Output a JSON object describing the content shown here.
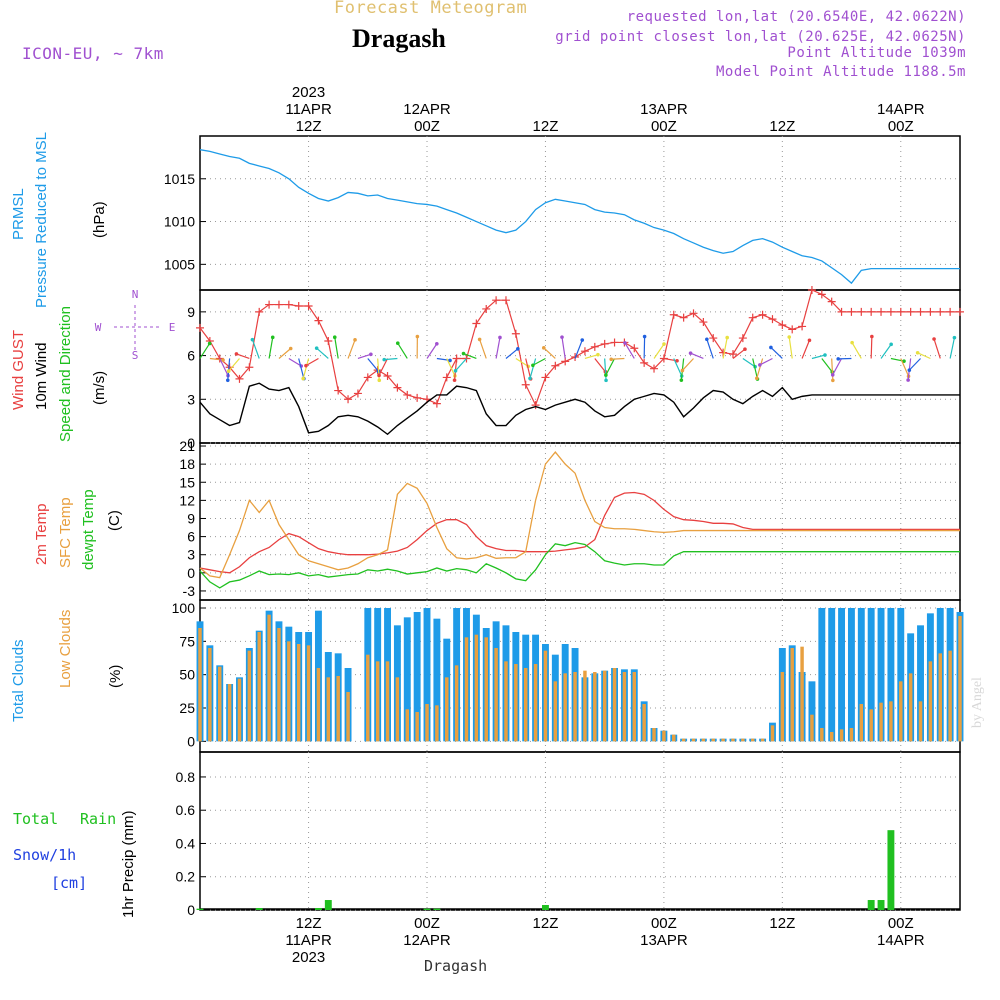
{
  "header": {
    "super_title": "Forecast Meteogram",
    "title": "Dragash",
    "model": "ICON-EU, ~ 7km",
    "requested": "requested lon,lat (20.6540E, 42.0622N)",
    "grid_point": "grid point closest lon,lat (20.625E, 42.0625N)",
    "point_altitude": "Point Altitude 1039m",
    "model_altitude": "Model Point Altitude 1188.5m",
    "watermark": "by Angel",
    "footer": "Dragash"
  },
  "time_axis": {
    "top_labels": [
      {
        "lines": [
          "2023",
          "11APR",
          "12Z"
        ],
        "hour": 12
      },
      {
        "lines": [
          "12APR",
          "00Z"
        ],
        "hour": 24
      },
      {
        "lines": [
          "12Z"
        ],
        "hour": 36
      },
      {
        "lines": [
          "13APR",
          "00Z"
        ],
        "hour": 48
      },
      {
        "lines": [
          "12Z"
        ],
        "hour": 60
      },
      {
        "lines": [
          "14APR",
          "00Z"
        ],
        "hour": 72
      }
    ],
    "bottom_labels": [
      {
        "lines": [
          "12Z",
          "11APR",
          "2023"
        ],
        "hour": 12
      },
      {
        "lines": [
          "00Z",
          "12APR"
        ],
        "hour": 24
      },
      {
        "lines": [
          "12Z"
        ],
        "hour": 36
      },
      {
        "lines": [
          "00Z",
          "13APR"
        ],
        "hour": 48
      },
      {
        "lines": [
          "12Z"
        ],
        "hour": 60
      },
      {
        "lines": [
          "00Z",
          "14APR"
        ],
        "hour": 72
      }
    ],
    "start_hour": 1,
    "end_hour": 78
  },
  "colors": {
    "pressure": "#1e9be8",
    "gust": "#e84040",
    "wind": "#000000",
    "t2m": "#e84040",
    "sfc": "#e8a040",
    "dewpt": "#20c020",
    "total_clouds": "#1e9be8",
    "low_clouds": "#e8a040",
    "rain": "#20c020",
    "snow": "#2040e0",
    "purple": "#a050d0"
  },
  "chart_data": [
    {
      "type": "line",
      "panel": "pressure",
      "ylabel_lines": [
        "PRMSL",
        "Pressure Reduced to MSL"
      ],
      "unit": "(hPa)",
      "yticks": [
        1005,
        1010,
        1015
      ],
      "ylim": [
        1002,
        1020
      ],
      "x": [
        1,
        2,
        3,
        4,
        5,
        6,
        7,
        8,
        9,
        10,
        11,
        12,
        13,
        14,
        15,
        16,
        17,
        18,
        19,
        20,
        21,
        22,
        23,
        24,
        25,
        26,
        27,
        28,
        29,
        30,
        31,
        32,
        33,
        34,
        35,
        36,
        37,
        38,
        39,
        40,
        41,
        42,
        43,
        44,
        45,
        46,
        47,
        48,
        49,
        50,
        51,
        52,
        53,
        54,
        55,
        56,
        57,
        58,
        59,
        60,
        61,
        62,
        63,
        64,
        65,
        66,
        67,
        68,
        69,
        70,
        71,
        72,
        73,
        74,
        75,
        76,
        77,
        78
      ],
      "series": [
        {
          "values": [
            1018.4,
            1018.2,
            1017.9,
            1017.6,
            1017.4,
            1016.8,
            1016.5,
            1016.2,
            1015.7,
            1015.0,
            1014.0,
            1013.3,
            1012.7,
            1012.4,
            1012.8,
            1013.4,
            1013.3,
            1013.0,
            1013.1,
            1012.7,
            1012.5,
            1012.3,
            1012.1,
            1012.0,
            1011.8,
            1011.4,
            1011.0,
            1010.5,
            1010.0,
            1009.5,
            1009.0,
            1008.7,
            1009.0,
            1010.0,
            1011.4,
            1012.2,
            1012.6,
            1012.4,
            1012.2,
            1012.0,
            1011.4,
            1011.1,
            1011.0,
            1010.8,
            1010.2,
            1009.8,
            1009.3,
            1009.0,
            1008.6,
            1008.0,
            1007.5,
            1007.0,
            1006.6,
            1006.3,
            1006.5,
            1007.2,
            1007.8,
            1008.0,
            1007.6,
            1007.0,
            1006.5,
            1006.0,
            1005.8,
            1005.4,
            1004.6,
            1003.8,
            1002.8,
            1004.3,
            1004.5,
            1004.5,
            1004.5,
            1004.5,
            1004.5,
            1004.5,
            1004.5,
            1004.5,
            1004.5,
            1004.5
          ]
        }
      ]
    },
    {
      "type": "line",
      "panel": "wind",
      "ylabel_lines": [
        "Wind GUST",
        "10m Wind",
        "Speed and Direction"
      ],
      "unit": "(m/s)",
      "compass": {
        "n": "N",
        "s": "S",
        "w": "W",
        "e": "E"
      },
      "yticks": [
        0,
        3,
        6,
        9
      ],
      "ylim": [
        0,
        10.5
      ],
      "x": [
        1,
        2,
        3,
        4,
        5,
        6,
        7,
        8,
        9,
        10,
        11,
        12,
        13,
        14,
        15,
        16,
        17,
        18,
        19,
        20,
        21,
        22,
        23,
        24,
        25,
        26,
        27,
        28,
        29,
        30,
        31,
        32,
        33,
        34,
        35,
        36,
        37,
        38,
        39,
        40,
        41,
        42,
        43,
        44,
        45,
        46,
        47,
        48,
        49,
        50,
        51,
        52,
        53,
        54,
        55,
        56,
        57,
        58,
        59,
        60,
        61,
        62,
        63,
        64,
        65,
        66,
        67,
        68,
        69,
        70,
        71,
        72,
        73,
        74,
        75,
        76,
        77,
        78
      ],
      "series": [
        {
          "name": "Wind GUST",
          "values": [
            7.9,
            7.0,
            5.8,
            5.2,
            4.4,
            5.2,
            9.0,
            9.5,
            9.5,
            9.5,
            9.4,
            9.4,
            8.4,
            7.0,
            3.6,
            3.0,
            3.4,
            4.5,
            5.0,
            4.6,
            3.8,
            3.3,
            3.1,
            3.0,
            2.7,
            4.5,
            5.8,
            5.8,
            8.2,
            9.2,
            9.8,
            9.8,
            7.5,
            4.0,
            2.6,
            4.5,
            5.3,
            5.6,
            5.9,
            6.3,
            6.6,
            6.8,
            6.9,
            6.9,
            6.5,
            5.5,
            5.1,
            5.8,
            8.8,
            8.6,
            8.9,
            8.3,
            7.2,
            6.2,
            6.1,
            7.2,
            8.6,
            8.8,
            8.5,
            8.1,
            7.8,
            8.0,
            10.5,
            10.2,
            9.7,
            9.0,
            9.0,
            9.0,
            9.0,
            9.0,
            9.0,
            9.0,
            9.0,
            9.0,
            9.0,
            9.0,
            9.0,
            9.0
          ]
        },
        {
          "name": "10m Wind",
          "values": [
            2.8,
            2.0,
            1.6,
            1.2,
            1.4,
            3.9,
            4.1,
            3.7,
            3.6,
            3.8,
            2.5,
            0.7,
            0.8,
            1.2,
            1.8,
            1.9,
            1.8,
            1.5,
            1.1,
            0.6,
            1.2,
            1.7,
            2.2,
            2.8,
            3.3,
            3.3,
            3.9,
            3.8,
            3.6,
            2.0,
            1.2,
            1.2,
            1.9,
            2.3,
            2.5,
            2.3,
            2.6,
            2.8,
            3.0,
            2.8,
            2.2,
            1.8,
            1.9,
            2.5,
            3.0,
            3.2,
            3.4,
            3.3,
            2.8,
            1.8,
            2.4,
            3.1,
            3.6,
            3.5,
            3.0,
            2.7,
            3.2,
            3.6,
            3.2,
            3.8,
            3.0,
            3.2,
            3.3,
            3.3,
            3.3,
            3.3,
            3.3,
            3.3,
            3.3,
            3.3,
            3.3,
            3.3,
            3.3,
            3.3,
            3.3,
            3.3,
            3.3,
            3.3
          ]
        }
      ]
    },
    {
      "type": "line",
      "panel": "temperature",
      "ylabel_lines": [
        "2m Temp",
        "SFC Temp",
        "dewpt Temp"
      ],
      "unit": "(C)",
      "yticks": [
        -3,
        0,
        3,
        6,
        9,
        12,
        15,
        18,
        21
      ],
      "ylim": [
        -4.5,
        21.5
      ],
      "x": [
        1,
        2,
        3,
        4,
        5,
        6,
        7,
        8,
        9,
        10,
        11,
        12,
        13,
        14,
        15,
        16,
        17,
        18,
        19,
        20,
        21,
        22,
        23,
        24,
        25,
        26,
        27,
        28,
        29,
        30,
        31,
        32,
        33,
        34,
        35,
        36,
        37,
        38,
        39,
        40,
        41,
        42,
        43,
        44,
        45,
        46,
        47,
        48,
        49,
        50,
        51,
        52,
        53,
        54,
        55,
        56,
        57,
        58,
        59,
        60,
        61,
        62,
        63,
        64,
        65,
        66,
        67,
        68,
        69,
        70,
        71,
        72,
        73,
        74,
        75,
        76,
        77,
        78
      ],
      "series": [
        {
          "name": "2m Temp",
          "values": [
            0.8,
            0.5,
            0.2,
            0.0,
            1.0,
            2.5,
            3.5,
            4.2,
            5.5,
            6.5,
            6.0,
            5.0,
            4.0,
            3.5,
            3.2,
            3.0,
            3.0,
            3.0,
            3.1,
            3.3,
            3.6,
            4.2,
            5.5,
            7.0,
            8.2,
            8.8,
            8.8,
            8.0,
            6.0,
            4.5,
            4.0,
            3.7,
            3.7,
            3.5,
            3.5,
            3.5,
            3.6,
            3.8,
            4.0,
            4.3,
            5.5,
            9.5,
            12.5,
            13.2,
            13.3,
            13.0,
            12.0,
            10.5,
            9.3,
            8.8,
            8.7,
            8.5,
            8.2,
            8.2,
            8.1,
            7.5,
            7.2,
            7.2,
            7.2,
            7.2,
            7.2,
            7.2,
            7.2,
            7.2,
            7.2,
            7.2,
            7.2,
            7.2,
            7.2,
            7.2,
            7.2,
            7.2,
            7.2,
            7.2,
            7.2,
            7.2,
            7.2,
            7.2
          ]
        },
        {
          "name": "SFC Temp",
          "values": [
            0.8,
            -0.5,
            -0.8,
            3.0,
            7.0,
            12.0,
            10.0,
            12.0,
            8.0,
            5.5,
            3.0,
            2.0,
            1.5,
            1.0,
            0.5,
            0.8,
            1.5,
            2.5,
            3.0,
            3.8,
            13.0,
            14.8,
            14.0,
            11.5,
            7.5,
            4.0,
            2.5,
            2.3,
            2.5,
            3.0,
            2.4,
            2.5,
            2.5,
            3.5,
            12.0,
            18.0,
            20.0,
            18.0,
            16.5,
            12.0,
            8.5,
            7.5,
            7.3,
            7.3,
            7.2,
            7.0,
            6.8,
            6.7,
            6.8,
            7.0,
            7.0,
            7.0,
            7.0,
            7.0,
            7.0,
            7.0,
            7.0,
            7.0,
            7.0,
            7.0,
            7.0,
            7.0,
            7.0,
            7.0,
            7.0,
            7.0,
            7.0,
            7.0,
            7.0,
            7.0,
            7.0,
            7.0,
            7.0,
            7.0,
            7.0,
            7.0,
            7.0,
            7.0
          ]
        },
        {
          "name": "dewpt Temp",
          "values": [
            0.3,
            -1.5,
            -2.5,
            -1.5,
            -1.2,
            -0.5,
            0.3,
            -0.3,
            -0.2,
            -0.3,
            0.0,
            -0.5,
            -0.3,
            -0.7,
            -0.5,
            -0.3,
            -0.2,
            0.5,
            0.3,
            0.6,
            0.3,
            -0.2,
            0.0,
            0.2,
            0.8,
            0.3,
            0.7,
            0.5,
            0.0,
            1.5,
            0.8,
            0.0,
            -1.0,
            -1.3,
            0.5,
            3.0,
            4.8,
            4.5,
            5.0,
            4.7,
            3.5,
            2.0,
            1.6,
            1.3,
            1.5,
            1.5,
            1.3,
            1.3,
            2.8,
            3.5,
            3.5,
            3.5,
            3.5,
            3.5,
            3.5,
            3.5,
            3.5,
            3.5,
            3.5,
            3.5,
            3.5,
            3.5,
            3.5,
            3.5,
            3.5,
            3.5,
            3.5,
            3.5,
            3.5,
            3.5,
            3.5,
            3.5,
            3.5,
            3.5,
            3.5,
            3.5,
            3.5,
            3.5
          ]
        }
      ]
    },
    {
      "type": "bar",
      "panel": "clouds",
      "ylabel_lines": [
        "Total Clouds",
        "Low Clouds"
      ],
      "unit": "(%)",
      "yticks": [
        0,
        25,
        50,
        75,
        100
      ],
      "ylim": [
        -8,
        106
      ],
      "x": [
        1,
        2,
        3,
        4,
        5,
        6,
        7,
        8,
        9,
        10,
        11,
        12,
        13,
        14,
        15,
        16,
        17,
        18,
        19,
        20,
        21,
        22,
        23,
        24,
        25,
        26,
        27,
        28,
        29,
        30,
        31,
        32,
        33,
        34,
        35,
        36,
        37,
        38,
        39,
        40,
        41,
        42,
        43,
        44,
        45,
        46,
        47,
        48,
        49,
        50,
        51,
        52,
        53,
        54,
        55,
        56,
        57,
        58,
        59,
        60,
        61,
        62,
        63,
        64,
        65,
        66,
        67,
        68,
        69,
        70,
        71,
        72,
        73,
        74,
        75,
        76,
        77,
        78
      ],
      "series": [
        {
          "name": "Total Clouds",
          "values": [
            90,
            72,
            57,
            43,
            48,
            70,
            83,
            98,
            90,
            86,
            82,
            82,
            98,
            67,
            66,
            55,
            0,
            100,
            100,
            100,
            87,
            93,
            97,
            100,
            92,
            77,
            100,
            100,
            95,
            85,
            90,
            87,
            82,
            80,
            80,
            73,
            65,
            73,
            70,
            48,
            51,
            53,
            55,
            54,
            54,
            30,
            10,
            8,
            5,
            2,
            2,
            2,
            2,
            2,
            2,
            2,
            2,
            2,
            14,
            70,
            72,
            52,
            45,
            100,
            100,
            100,
            100,
            100,
            100,
            100,
            100,
            100,
            81,
            87,
            96,
            100,
            100,
            97
          ]
        },
        {
          "name": "Low Clouds",
          "values": [
            85,
            70,
            56,
            43,
            47,
            68,
            82,
            95,
            85,
            75,
            73,
            72,
            55,
            48,
            49,
            37,
            0,
            65,
            60,
            60,
            48,
            24,
            22,
            28,
            27,
            48,
            57,
            78,
            80,
            78,
            70,
            60,
            58,
            55,
            58,
            68,
            45,
            51,
            52,
            53,
            52,
            53,
            55,
            52,
            52,
            28,
            10,
            8,
            5,
            2,
            2,
            2,
            2,
            2,
            2,
            2,
            2,
            2,
            12,
            52,
            70,
            71,
            20,
            10,
            7,
            9,
            10,
            28,
            24,
            29,
            30,
            45,
            51,
            30,
            60,
            66,
            68,
            94
          ]
        }
      ]
    },
    {
      "type": "bar",
      "panel": "precip",
      "ylabel": "1hr Precip (mm)",
      "side_labels": {
        "total": "Total",
        "rain": "Rain",
        "snow": "Snow/1h",
        "cm": "[cm]"
      },
      "yticks": [
        0,
        0.2,
        0.4,
        0.6,
        0.8
      ],
      "ylim": [
        0,
        0.95
      ],
      "series": [
        {
          "name": "Rain",
          "points": [
            [
              1,
              0.008
            ],
            [
              7,
              0.012
            ],
            [
              14,
              0.06
            ],
            [
              13,
              0.012
            ],
            [
              24,
              0.008
            ],
            [
              25,
              0.008
            ],
            [
              36,
              0.03
            ],
            [
              69,
              0.06
            ],
            [
              70,
              0.06
            ],
            [
              71,
              0.48
            ]
          ]
        }
      ]
    }
  ]
}
